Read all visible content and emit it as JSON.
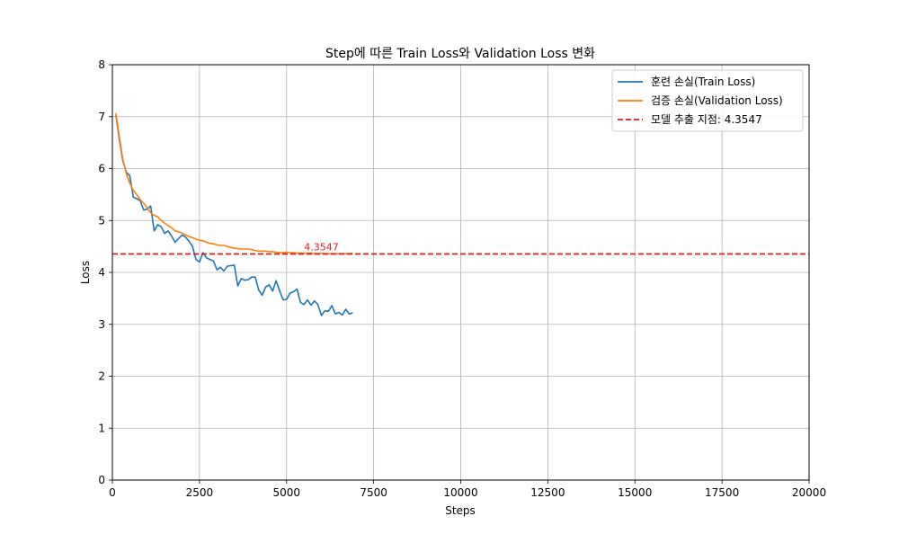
{
  "chart_data": {
    "type": "line",
    "title": "Step에 따른 Train Loss와 Validation Loss 변화",
    "xlabel": "Steps",
    "ylabel": "Loss",
    "xlim": [
      0,
      20000
    ],
    "ylim": [
      0,
      8
    ],
    "x_ticks": [
      "0",
      "2500",
      "5000",
      "7500",
      "10000",
      "12500",
      "15000",
      "17500",
      "20000"
    ],
    "y_ticks": [
      "0",
      "1",
      "2",
      "3",
      "4",
      "5",
      "6",
      "7",
      "8"
    ],
    "grid": true,
    "legend_position": "top-right",
    "series": [
      {
        "name": "훈련 손실(Train Loss)",
        "color": "#1f77b4",
        "x": [
          100,
          200,
          300,
          400,
          500,
          600,
          700,
          800,
          900,
          1000,
          1100,
          1200,
          1300,
          1400,
          1500,
          1600,
          1700,
          1800,
          1900,
          2000,
          2100,
          2200,
          2300,
          2400,
          2500,
          2600,
          2700,
          2800,
          2900,
          3000,
          3100,
          3200,
          3300,
          3400,
          3500,
          3600,
          3700,
          3800,
          3900,
          4000,
          4100,
          4200,
          4300,
          4400,
          4500,
          4600,
          4700,
          4800,
          4900,
          5000,
          5100,
          5200,
          5300,
          5400,
          5500,
          5600,
          5700,
          5800,
          5900,
          6000,
          6100,
          6200,
          6300,
          6400,
          6500,
          6600,
          6700,
          6800,
          6900
        ],
        "y": [
          7.03,
          6.55,
          6.15,
          5.93,
          5.86,
          5.45,
          5.42,
          5.38,
          5.2,
          5.22,
          5.28,
          4.8,
          4.92,
          4.88,
          4.75,
          4.8,
          4.7,
          4.58,
          4.65,
          4.72,
          4.68,
          4.6,
          4.5,
          4.25,
          4.2,
          4.38,
          4.28,
          4.25,
          4.22,
          4.05,
          4.1,
          4.03,
          4.12,
          4.13,
          4.14,
          3.74,
          3.88,
          3.85,
          3.86,
          3.91,
          3.91,
          3.66,
          3.56,
          3.72,
          3.76,
          3.64,
          3.84,
          3.65,
          3.47,
          3.48,
          3.6,
          3.63,
          3.68,
          3.42,
          3.38,
          3.47,
          3.37,
          3.45,
          3.38,
          3.17,
          3.26,
          3.25,
          3.36,
          3.2,
          3.23,
          3.18,
          3.29,
          3.2,
          3.22
        ]
      },
      {
        "name": "검증 손실(Validation Loss)",
        "color": "#ff7f0e",
        "x": [
          100,
          200,
          300,
          400,
          500,
          600,
          700,
          800,
          900,
          1000,
          1100,
          1200,
          1300,
          1400,
          1500,
          1600,
          1700,
          1800,
          1900,
          2000,
          2100,
          2200,
          2300,
          2400,
          2500,
          2600,
          2700,
          2800,
          2900,
          3000,
          3100,
          3200,
          3300,
          3400,
          3500,
          3600,
          3700,
          3800,
          3900,
          4000,
          4100,
          4200,
          4300,
          4400,
          4500,
          4600,
          4700,
          4800,
          4900,
          5000,
          5100,
          5200,
          5300,
          5400,
          5500,
          5600,
          5700,
          5800,
          5900,
          6000,
          6100,
          6200,
          6300,
          6400,
          6500,
          6600,
          6700,
          6800,
          6900
        ],
        "y": [
          7.07,
          6.6,
          6.18,
          5.9,
          5.72,
          5.58,
          5.5,
          5.4,
          5.33,
          5.24,
          5.15,
          5.1,
          5.07,
          5.0,
          4.95,
          4.9,
          4.86,
          4.8,
          4.78,
          4.76,
          4.72,
          4.69,
          4.67,
          4.64,
          4.62,
          4.61,
          4.58,
          4.56,
          4.55,
          4.53,
          4.52,
          4.52,
          4.5,
          4.48,
          4.47,
          4.46,
          4.45,
          4.45,
          4.45,
          4.44,
          4.42,
          4.41,
          4.41,
          4.41,
          4.4,
          4.4,
          4.39,
          4.38,
          4.38,
          4.39,
          4.38,
          4.38,
          4.37,
          4.37,
          4.37,
          4.37,
          4.37,
          4.36,
          4.36,
          4.37,
          4.36,
          4.36,
          4.36,
          4.36,
          4.36,
          4.36,
          4.36,
          4.36,
          4.37
        ]
      }
    ],
    "hline": {
      "name": "모델 추출 지점: 4.3547",
      "value": 4.3547,
      "color": "#e31a1c",
      "style": "dashed",
      "annotation": "4.3547",
      "annotation_x": 6000
    }
  }
}
